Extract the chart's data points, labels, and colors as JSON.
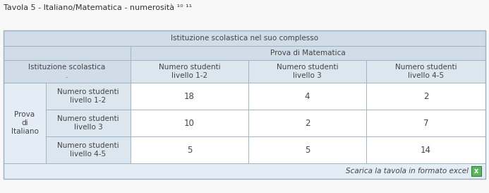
{
  "title": "Tavola 5 - Italiano/Matematica - numerosità ¹⁰ ¹¹",
  "top_header": "Istituzione scolastica nel suo complesso",
  "col_group_header": "Prova di Matematica",
  "row_group_header": "Prova\ndi\nItaliano",
  "row_label_header": "Istituzione scolastica\n.",
  "col_sub_headers": [
    "Numero studenti\nlivello 1-2",
    "Numero studenti\nlivello 3",
    "Numero studenti\nlivello 4-5"
  ],
  "row_sub_headers": [
    "Numero studenti\nlivello 1-2",
    "Numero studenti\nlivello 3",
    "Numero studenti\nlivello 4-5"
  ],
  "data": [
    [
      18,
      4,
      2
    ],
    [
      10,
      2,
      7
    ],
    [
      5,
      5,
      14
    ]
  ],
  "footer_text": "Scarica la tavola in formato excel",
  "bg_header": "#d0dce8",
  "bg_subheader": "#dce6ef",
  "bg_white": "#ffffff",
  "bg_light": "#e4edf5",
  "border_color": "#9bafc0",
  "text_color": "#444444",
  "title_color": "#333333",
  "title_fontsize": 8,
  "header_fontsize": 7.5,
  "data_fontsize": 8.5
}
